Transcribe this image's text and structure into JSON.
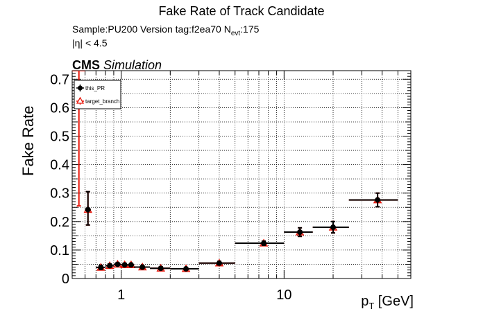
{
  "header": {
    "title": "Fake Rate of Track Candidate",
    "sample_line": "Sample:PU200   Version tag:f2ea70  N",
    "nevt_sub": "evt",
    "nevt_value": ":175",
    "eta_cut": "|η| < 4.5",
    "cms_bold": "CMS",
    "cms_italic": "Simulation"
  },
  "chart_data": {
    "type": "scatter",
    "title": "Fake Rate of Track Candidate",
    "xlabel_main": "p",
    "xlabel_sub": "T",
    "xlabel_unit": "[GeV]",
    "ylabel": "Fake Rate",
    "xscale": "log",
    "xlim": [
      0.5,
      60
    ],
    "ylim": [
      0,
      0.73
    ],
    "grid": true,
    "legend_position": "top-left",
    "x_tick_labels": [
      {
        "value": 1,
        "label": "1"
      },
      {
        "value": 10,
        "label": "10"
      }
    ],
    "y_tick_labels": [
      "0",
      "0.1",
      "0.2",
      "0.3",
      "0.4",
      "0.5",
      "0.6",
      "0.7"
    ],
    "y_ticks": [
      0,
      0.1,
      0.2,
      0.3,
      0.4,
      0.5,
      0.6,
      0.7
    ],
    "series": [
      {
        "name": "this_PR",
        "color": "#000000",
        "marker": "filled-circle",
        "points": [
          {
            "x": 0.625,
            "xlo": 0.6,
            "xhi": 0.65,
            "y": 0.242,
            "ylo": 0.188,
            "yhi": 0.305
          },
          {
            "x": 0.75,
            "xlo": 0.7,
            "xhi": 0.8,
            "y": 0.039,
            "ylo": 0.032,
            "yhi": 0.046
          },
          {
            "x": 0.85,
            "xlo": 0.8,
            "xhi": 0.9,
            "y": 0.045,
            "ylo": 0.039,
            "yhi": 0.051
          },
          {
            "x": 0.95,
            "xlo": 0.9,
            "xhi": 1.0,
            "y": 0.05,
            "ylo": 0.045,
            "yhi": 0.055
          },
          {
            "x": 1.05,
            "xlo": 1.0,
            "xhi": 1.1,
            "y": 0.048,
            "ylo": 0.043,
            "yhi": 0.053
          },
          {
            "x": 1.15,
            "xlo": 1.1,
            "xhi": 1.2,
            "y": 0.048,
            "ylo": 0.043,
            "yhi": 0.053
          },
          {
            "x": 1.35,
            "xlo": 1.2,
            "xhi": 1.5,
            "y": 0.04,
            "ylo": 0.035,
            "yhi": 0.045
          },
          {
            "x": 1.75,
            "xlo": 1.5,
            "xhi": 2.0,
            "y": 0.036,
            "ylo": 0.031,
            "yhi": 0.041
          },
          {
            "x": 2.5,
            "xlo": 2.0,
            "xhi": 3.0,
            "y": 0.034,
            "ylo": 0.029,
            "yhi": 0.039
          },
          {
            "x": 4.0,
            "xlo": 3.0,
            "xhi": 5.0,
            "y": 0.054,
            "ylo": 0.048,
            "yhi": 0.06
          },
          {
            "x": 7.5,
            "xlo": 5.0,
            "xhi": 10.0,
            "y": 0.124,
            "ylo": 0.117,
            "yhi": 0.131
          },
          {
            "x": 12.5,
            "xlo": 10.0,
            "xhi": 15.0,
            "y": 0.163,
            "ylo": 0.148,
            "yhi": 0.178
          },
          {
            "x": 20.0,
            "xlo": 15.0,
            "xhi": 25.0,
            "y": 0.18,
            "ylo": 0.16,
            "yhi": 0.2
          },
          {
            "x": 37.5,
            "xlo": 25.0,
            "xhi": 50.0,
            "y": 0.276,
            "ylo": 0.252,
            "yhi": 0.3
          }
        ]
      },
      {
        "name": "target_branch",
        "color": "#e8180c",
        "marker": "open-triangle",
        "points": [
          {
            "x": 0.55,
            "xlo": 0.5,
            "xhi": 0.6,
            "y": 0.73,
            "ylo": 0.255,
            "yhi": 0.73
          },
          {
            "x": 0.625,
            "xlo": 0.6,
            "xhi": 0.65,
            "y": 0.242,
            "ylo": 0.188,
            "yhi": 0.305
          },
          {
            "x": 0.75,
            "xlo": 0.7,
            "xhi": 0.8,
            "y": 0.039,
            "ylo": 0.032,
            "yhi": 0.046
          },
          {
            "x": 0.85,
            "xlo": 0.8,
            "xhi": 0.9,
            "y": 0.045,
            "ylo": 0.039,
            "yhi": 0.051
          },
          {
            "x": 0.95,
            "xlo": 0.9,
            "xhi": 1.0,
            "y": 0.05,
            "ylo": 0.045,
            "yhi": 0.055
          },
          {
            "x": 1.05,
            "xlo": 1.0,
            "xhi": 1.1,
            "y": 0.048,
            "ylo": 0.043,
            "yhi": 0.053
          },
          {
            "x": 1.15,
            "xlo": 1.1,
            "xhi": 1.2,
            "y": 0.048,
            "ylo": 0.043,
            "yhi": 0.053
          },
          {
            "x": 1.35,
            "xlo": 1.2,
            "xhi": 1.5,
            "y": 0.04,
            "ylo": 0.035,
            "yhi": 0.045
          },
          {
            "x": 1.75,
            "xlo": 1.5,
            "xhi": 2.0,
            "y": 0.036,
            "ylo": 0.031,
            "yhi": 0.041
          },
          {
            "x": 2.5,
            "xlo": 2.0,
            "xhi": 3.0,
            "y": 0.034,
            "ylo": 0.029,
            "yhi": 0.039
          },
          {
            "x": 4.0,
            "xlo": 3.0,
            "xhi": 5.0,
            "y": 0.054,
            "ylo": 0.048,
            "yhi": 0.06
          },
          {
            "x": 7.5,
            "xlo": 5.0,
            "xhi": 10.0,
            "y": 0.124,
            "ylo": 0.117,
            "yhi": 0.131
          },
          {
            "x": 12.5,
            "xlo": 10.0,
            "xhi": 15.0,
            "y": 0.163,
            "ylo": 0.148,
            "yhi": 0.178
          },
          {
            "x": 20.0,
            "xlo": 15.0,
            "xhi": 25.0,
            "y": 0.18,
            "ylo": 0.16,
            "yhi": 0.2
          },
          {
            "x": 37.5,
            "xlo": 25.0,
            "xhi": 50.0,
            "y": 0.276,
            "ylo": 0.252,
            "yhi": 0.3
          }
        ]
      }
    ]
  }
}
